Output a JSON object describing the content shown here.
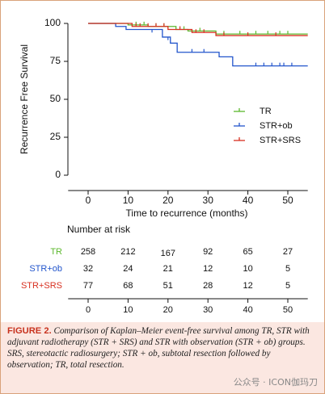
{
  "chart_data": {
    "type": "km",
    "ylabel": "Recurrence Free Survival",
    "xlabel": "Time to recurrence (months)",
    "xlim": [
      -5,
      55
    ],
    "ylim": [
      0,
      100
    ],
    "xticks": [
      0,
      10,
      20,
      30,
      40,
      50
    ],
    "yticks": [
      0,
      25,
      50,
      75,
      100
    ],
    "legend_position": "right",
    "series": [
      {
        "name": "TR",
        "color": "#5cb82e",
        "x": [
          0,
          10,
          15,
          22,
          25,
          32,
          55
        ],
        "values": [
          100,
          99,
          98,
          96,
          95,
          93,
          93
        ],
        "censor_x": [
          12,
          14,
          17,
          19,
          24,
          28,
          34,
          38,
          42,
          45,
          48,
          50
        ],
        "censor_y": [
          99,
          99,
          98,
          98,
          96,
          95,
          93,
          93,
          93,
          93,
          93,
          93
        ]
      },
      {
        "name": "STR+ob",
        "color": "#2255cc",
        "x": [
          0,
          6.9,
          9.5,
          18.6,
          20.6,
          22.3,
          32.8,
          36.2,
          55
        ],
        "values": [
          100,
          98,
          96,
          91,
          87,
          81,
          78,
          72,
          72
        ],
        "censor_x": [
          16,
          20,
          26,
          29,
          42,
          44,
          46,
          48,
          49,
          51
        ],
        "censor_y": [
          94,
          89,
          81,
          81,
          72,
          72,
          72,
          72,
          72,
          72
        ],
        "censor_symbol": "tick"
      },
      {
        "name": "STR+SRS",
        "color": "#d83020",
        "x": [
          0,
          11,
          20,
          26,
          32,
          55
        ],
        "values": [
          100,
          98,
          96,
          94,
          92,
          92
        ],
        "censor_x": [
          12,
          13,
          15,
          17,
          19,
          23,
          27,
          29,
          34,
          40,
          47
        ],
        "censor_y": [
          98,
          98,
          98,
          98,
          98,
          96,
          94,
          94,
          92,
          92,
          92
        ]
      }
    ]
  },
  "risk_table": {
    "title": "Number at risk",
    "times": [
      0,
      10,
      20,
      30,
      40,
      50
    ],
    "rows": [
      {
        "label": "TR",
        "values": [
          258,
          212,
          167,
          92,
          65,
          27
        ]
      },
      {
        "label": "STR+ob",
        "values": [
          32,
          24,
          21,
          12,
          10,
          5
        ]
      },
      {
        "label": "STR+SRS",
        "values": [
          77,
          68,
          51,
          28,
          12,
          5
        ]
      }
    ]
  },
  "caption": {
    "label": "FIGURE 2.",
    "text": "Comparison of Kaplan–Meier event-free survival among TR, STR with adjuvant radiotherapy (STR + SRS) and STR with observation (STR + ob) groups. SRS, stereotactic radiosurgery; STR + ob, subtotal resection followed by observation; TR, total resection."
  },
  "watermark": "公众号 · ICON伽玛刀"
}
